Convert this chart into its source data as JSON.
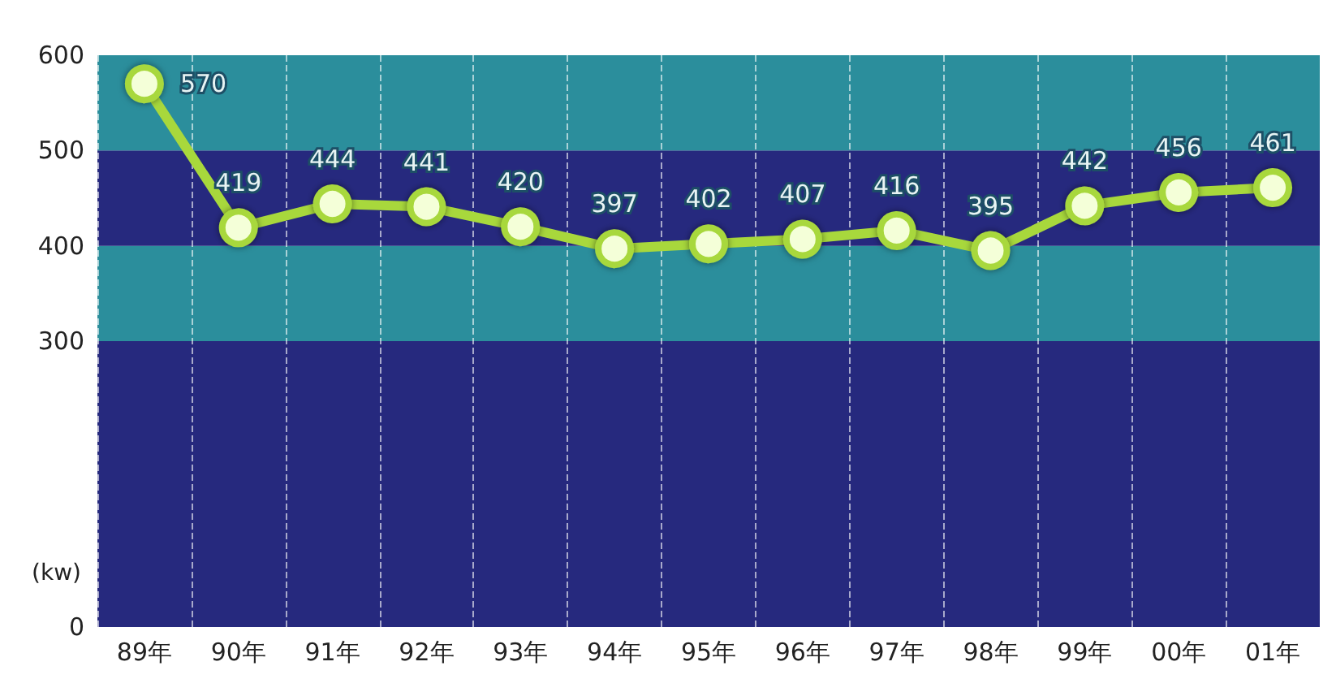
{
  "chart_data": {
    "type": "line",
    "ylabel": "(kw)",
    "categories": [
      "89年",
      "90年",
      "91年",
      "92年",
      "93年",
      "94年",
      "95年",
      "96年",
      "97年",
      "98年",
      "99年",
      "00年",
      "01年"
    ],
    "series": [
      {
        "color": "#a8d83c",
        "values": [
          570,
          419,
          444,
          441,
          420,
          397,
          402,
          407,
          416,
          395,
          442,
          456,
          461
        ]
      }
    ],
    "ylim": [
      0,
      600
    ],
    "yticks": [
      0,
      300,
      400,
      500,
      600
    ],
    "bands": [
      {
        "axis": "y",
        "from": 0,
        "to": 300,
        "color": "#26297e"
      },
      {
        "axis": "y",
        "from": 300,
        "to": 400,
        "color": "#2b8e9c"
      },
      {
        "axis": "y",
        "from": 400,
        "to": 500,
        "color": "#26297e"
      },
      {
        "axis": "y",
        "from": 500,
        "to": 600,
        "color": "#2b8e9c"
      }
    ],
    "grid": "x",
    "data_labels": true,
    "marker": "circle",
    "line_style": "solid"
  }
}
